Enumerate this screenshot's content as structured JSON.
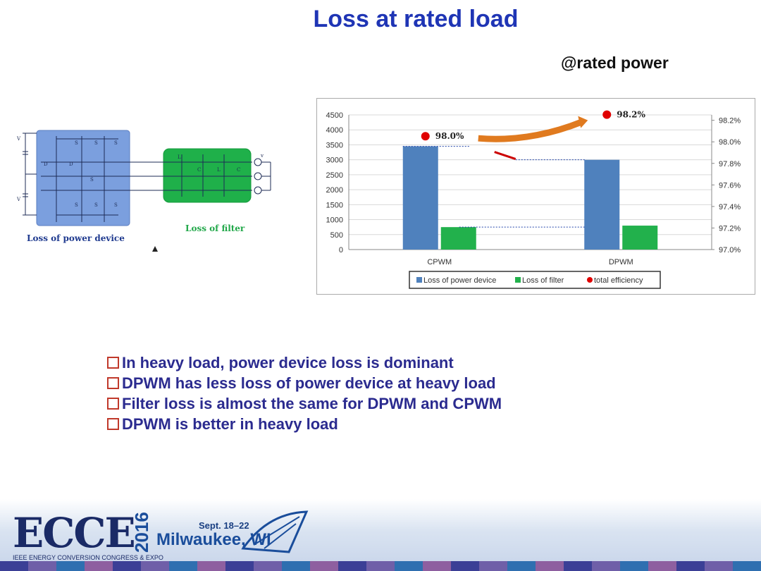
{
  "slide": {
    "title": "Loss at rated load",
    "subtitle": "@rated power"
  },
  "circuit": {
    "label_power_device": "Loss of power device",
    "label_filter": "Loss of filter"
  },
  "chart_data": {
    "type": "bar",
    "categories": [
      "CPWM",
      "DPWM"
    ],
    "series": [
      {
        "name": "Loss of power device",
        "values": [
          3450,
          3000
        ],
        "color": "#4f81bd"
      },
      {
        "name": "Loss of filter",
        "values": [
          750,
          800
        ],
        "color": "#22b14c"
      }
    ],
    "efficiency": {
      "name": "total efficiency",
      "values": [
        98.0,
        98.2
      ],
      "labels": [
        "98.0%",
        "98.2%"
      ],
      "color": "#e00000"
    },
    "ylim": [
      0,
      4500
    ],
    "yticks": [
      "0",
      "500",
      "1000",
      "1500",
      "2000",
      "2500",
      "3000",
      "3500",
      "4000",
      "4500"
    ],
    "y2lim": [
      97.0,
      98.25
    ],
    "y2ticks": [
      "97.0%",
      "97.2%",
      "97.4%",
      "97.6%",
      "97.8%",
      "98.0%",
      "98.2%"
    ],
    "legend_position": "bottom",
    "grid": true
  },
  "bullets": [
    "In heavy load, power device loss is dominant",
    "DPWM has less loss of power device at heavy load",
    "Filter loss is almost the same for DPWM and CPWM",
    "DPWM is better in heavy load"
  ],
  "footer": {
    "logo": "ECCE",
    "year": "2016",
    "logo_subtitle": "IEEE ENERGY CONVERSION CONGRESS & EXPO",
    "dates": "Sept. 18–22",
    "city": "Milwaukee, WI"
  }
}
